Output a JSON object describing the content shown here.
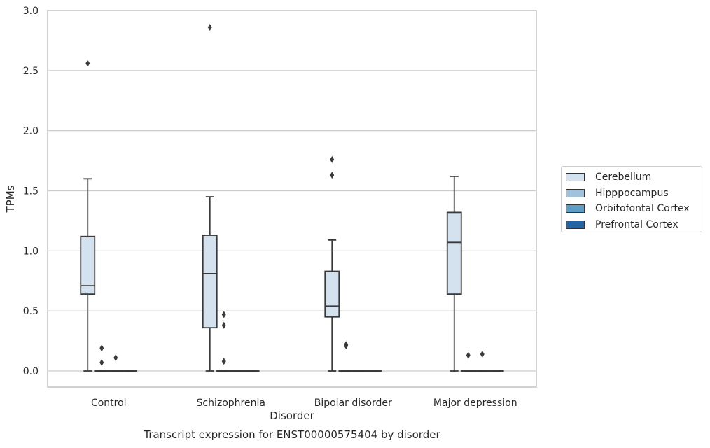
{
  "chart_data": {
    "type": "box",
    "title": "Transcript expression for ENST00000575404 by disorder",
    "xlabel": "Disorder",
    "ylabel": "TPMs",
    "ylim": [
      -0.14,
      3.0
    ],
    "yticks": [
      "0.0",
      "0.5",
      "1.0",
      "1.5",
      "2.0",
      "2.5",
      "3.0"
    ],
    "categories": [
      "Control",
      "Schizophrenia",
      "Bipolar disorder",
      "Major depression"
    ],
    "grid": "horizontal",
    "legend_position": "outside-right",
    "series": [
      {
        "name": "Cerebellum",
        "color": "#d4e2f0",
        "boxes": [
          {
            "category": "Control",
            "whisker_low": 0.0,
            "q1": 0.64,
            "median": 0.71,
            "q3": 1.12,
            "whisker_high": 1.6,
            "outliers": [
              2.56
            ]
          },
          {
            "category": "Schizophrenia",
            "whisker_low": 0.0,
            "q1": 0.36,
            "median": 0.81,
            "q3": 1.13,
            "whisker_high": 1.45,
            "outliers": [
              2.86
            ]
          },
          {
            "category": "Bipolar disorder",
            "whisker_low": 0.0,
            "q1": 0.45,
            "median": 0.54,
            "q3": 0.83,
            "whisker_high": 1.09,
            "outliers": [
              1.63,
              1.76
            ]
          },
          {
            "category": "Major depression",
            "whisker_low": 0.0,
            "q1": 0.64,
            "median": 1.07,
            "q3": 1.32,
            "whisker_high": 1.62,
            "outliers": []
          }
        ]
      },
      {
        "name": "Hipppocampus",
        "color": "#9fc2dd",
        "boxes": [
          {
            "category": "Control",
            "whisker_low": 0.0,
            "q1": 0.0,
            "median": 0.0,
            "q3": 0.0,
            "whisker_high": 0.0,
            "outliers": [
              0.19,
              0.07
            ]
          },
          {
            "category": "Schizophrenia",
            "whisker_low": 0.0,
            "q1": 0.0,
            "median": 0.0,
            "q3": 0.0,
            "whisker_high": 0.0,
            "outliers": [
              0.47,
              0.38,
              0.08
            ]
          },
          {
            "category": "Bipolar disorder",
            "whisker_low": 0.0,
            "q1": 0.0,
            "median": 0.0,
            "q3": 0.0,
            "whisker_high": 0.0,
            "outliers": [
              0.22,
              0.21
            ]
          },
          {
            "category": "Major depression",
            "whisker_low": 0.0,
            "q1": 0.0,
            "median": 0.0,
            "q3": 0.0,
            "whisker_high": 0.0,
            "outliers": [
              0.13
            ]
          }
        ]
      },
      {
        "name": "Orbitofontal Cortex",
        "color": "#5d9dc8",
        "boxes": [
          {
            "category": "Control",
            "whisker_low": 0.0,
            "q1": 0.0,
            "median": 0.0,
            "q3": 0.0,
            "whisker_high": 0.0,
            "outliers": [
              0.11
            ]
          },
          {
            "category": "Schizophrenia",
            "whisker_low": 0.0,
            "q1": 0.0,
            "median": 0.0,
            "q3": 0.0,
            "whisker_high": 0.0,
            "outliers": []
          },
          {
            "category": "Bipolar disorder",
            "whisker_low": 0.0,
            "q1": 0.0,
            "median": 0.0,
            "q3": 0.0,
            "whisker_high": 0.0,
            "outliers": []
          },
          {
            "category": "Major depression",
            "whisker_low": 0.0,
            "q1": 0.0,
            "median": 0.0,
            "q3": 0.0,
            "whisker_high": 0.0,
            "outliers": [
              0.14
            ]
          }
        ]
      },
      {
        "name": "Prefrontal Cortex",
        "color": "#2464a3",
        "boxes": [
          {
            "category": "Control",
            "whisker_low": 0.0,
            "q1": 0.0,
            "median": 0.0,
            "q3": 0.0,
            "whisker_high": 0.0,
            "outliers": []
          },
          {
            "category": "Schizophrenia",
            "whisker_low": 0.0,
            "q1": 0.0,
            "median": 0.0,
            "q3": 0.0,
            "whisker_high": 0.0,
            "outliers": []
          },
          {
            "category": "Bipolar disorder",
            "whisker_low": 0.0,
            "q1": 0.0,
            "median": 0.0,
            "q3": 0.0,
            "whisker_high": 0.0,
            "outliers": []
          },
          {
            "category": "Major depression",
            "whisker_low": 0.0,
            "q1": 0.0,
            "median": 0.0,
            "q3": 0.0,
            "whisker_high": 0.0,
            "outliers": []
          }
        ]
      }
    ]
  }
}
